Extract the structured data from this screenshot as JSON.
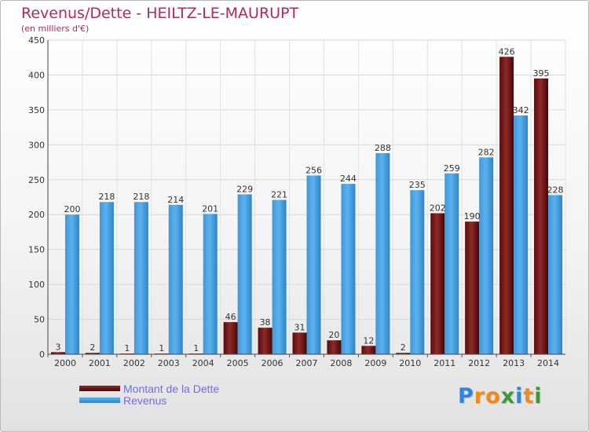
{
  "chart_data": {
    "type": "bar",
    "title": "Revenus/Dette - HEILTZ-LE-MAURUPT",
    "subtitle": "(en milliers d'€)",
    "categories": [
      "2000",
      "2001",
      "2002",
      "2003",
      "2004",
      "2005",
      "2006",
      "2007",
      "2008",
      "2009",
      "2010",
      "2011",
      "2012",
      "2013",
      "2014"
    ],
    "series": [
      {
        "name": "Montant de la Dette",
        "color": "#7a1515",
        "values": [
          3,
          2,
          1,
          1,
          1,
          46,
          38,
          31,
          20,
          12,
          2,
          202,
          190,
          426,
          395
        ]
      },
      {
        "name": "Revenus",
        "color": "#4aa3e3",
        "values": [
          200,
          218,
          218,
          214,
          201,
          229,
          221,
          256,
          244,
          288,
          235,
          259,
          282,
          342,
          228
        ]
      }
    ],
    "ylim": [
      0,
      450
    ],
    "yticks": [
      0,
      50,
      100,
      150,
      200,
      250,
      300,
      350,
      400,
      450
    ],
    "grid": true,
    "legend": "bottom-left"
  },
  "logo": {
    "letters": [
      "P",
      "r",
      "o",
      "x",
      "i",
      "t",
      "i"
    ],
    "colors": [
      "#2f86d6",
      "#f08a1c",
      "#f08a1c",
      "#3a9a3a",
      "#2f86d6",
      "#f08a1c",
      "#3a9a3a"
    ]
  }
}
